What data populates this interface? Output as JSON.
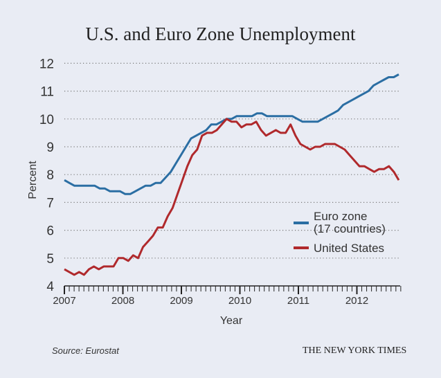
{
  "chart_data": {
    "type": "line",
    "title": "U.S. and Euro Zone Unemployment",
    "xlabel": "Year",
    "ylabel": "Percent",
    "ylim": [
      4,
      12
    ],
    "xlim": [
      2007,
      2012.75
    ],
    "yticks": [
      "4",
      "5",
      "6",
      "7",
      "8",
      "9",
      "10",
      "11",
      "12"
    ],
    "xticks": [
      "2007",
      "2008",
      "2009",
      "2010",
      "2011",
      "2012"
    ],
    "grid": true,
    "legend_position": "middle-right",
    "x_start": 2007,
    "x_step_months": 1,
    "series": [
      {
        "name": "Euro zone",
        "name_line2": "(17 countries)",
        "color": "#2b6ea3",
        "values": [
          7.8,
          7.7,
          7.6,
          7.6,
          7.6,
          7.6,
          7.6,
          7.5,
          7.5,
          7.4,
          7.4,
          7.4,
          7.3,
          7.3,
          7.4,
          7.5,
          7.6,
          7.6,
          7.7,
          7.7,
          7.9,
          8.1,
          8.4,
          8.7,
          9.0,
          9.3,
          9.4,
          9.5,
          9.6,
          9.8,
          9.8,
          9.9,
          10.0,
          10.0,
          10.1,
          10.1,
          10.1,
          10.1,
          10.2,
          10.2,
          10.1,
          10.1,
          10.1,
          10.1,
          10.1,
          10.1,
          10.0,
          9.9,
          9.9,
          9.9,
          9.9,
          10.0,
          10.1,
          10.2,
          10.3,
          10.5,
          10.6,
          10.7,
          10.8,
          10.9,
          11.0,
          11.2,
          11.3,
          11.4,
          11.5,
          11.5,
          11.6
        ]
      },
      {
        "name": "United States",
        "color": "#b0292c",
        "values": [
          4.6,
          4.5,
          4.4,
          4.5,
          4.4,
          4.6,
          4.7,
          4.6,
          4.7,
          4.7,
          4.7,
          5.0,
          5.0,
          4.9,
          5.1,
          5.0,
          5.4,
          5.6,
          5.8,
          6.1,
          6.1,
          6.5,
          6.8,
          7.3,
          7.8,
          8.3,
          8.7,
          8.9,
          9.4,
          9.5,
          9.5,
          9.6,
          9.8,
          10.0,
          9.9,
          9.9,
          9.7,
          9.8,
          9.8,
          9.9,
          9.6,
          9.4,
          9.5,
          9.6,
          9.5,
          9.5,
          9.8,
          9.4,
          9.1,
          9.0,
          8.9,
          9.0,
          9.0,
          9.1,
          9.1,
          9.1,
          9.0,
          8.9,
          8.7,
          8.5,
          8.3,
          8.3,
          8.2,
          8.1,
          8.2,
          8.2,
          8.3,
          8.1,
          7.8
        ]
      }
    ]
  },
  "footer": {
    "source": "Source: Eurostat",
    "credit": "THE NEW YORK TIMES"
  }
}
